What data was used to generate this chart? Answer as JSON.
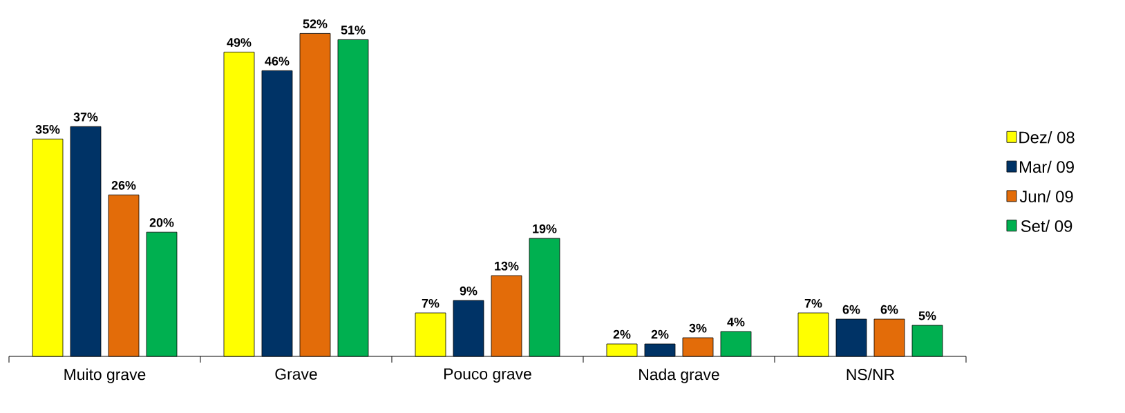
{
  "chart_data": {
    "type": "bar",
    "categories": [
      "Muito grave",
      "Grave",
      "Pouco grave",
      "Nada grave",
      "NS/NR"
    ],
    "series": [
      {
        "name": "Dez/ 08",
        "color": "#ffff00",
        "values": [
          35,
          49,
          7,
          2,
          7
        ],
        "value_labels": [
          "35%",
          "49%",
          "7%",
          "2%",
          "7%"
        ]
      },
      {
        "name": "Mar/ 09",
        "color": "#003366",
        "values": [
          37,
          46,
          9,
          2,
          6
        ],
        "value_labels": [
          "37%",
          "46%",
          "9%",
          "2%",
          "6%"
        ]
      },
      {
        "name": "Jun/ 09",
        "color": "#e36c09",
        "values": [
          26,
          52,
          13,
          3,
          6
        ],
        "value_labels": [
          "26%",
          "52%",
          "13%",
          "3%",
          "6%"
        ]
      },
      {
        "name": "Set/ 09",
        "color": "#00b050",
        "values": [
          20,
          51,
          19,
          4,
          5
        ],
        "value_labels": [
          "20%",
          "51%",
          "19%",
          "4%",
          "5%"
        ]
      }
    ],
    "tick_labels": "x",
    "legend": "right"
  }
}
